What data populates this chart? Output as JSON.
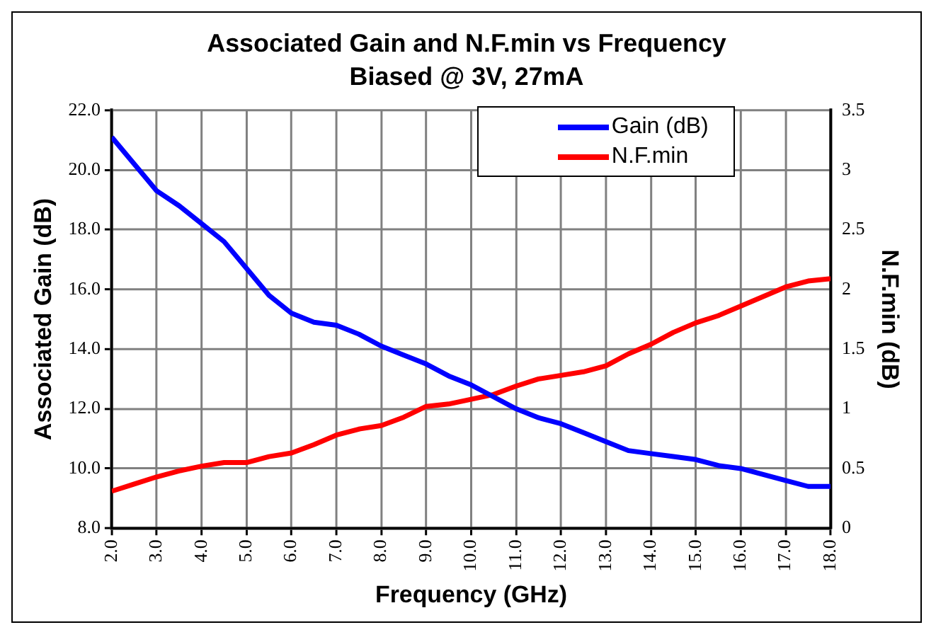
{
  "chart_data": {
    "type": "line",
    "title": "Associated Gain and N.F.min vs Frequency",
    "subtitle": "Biased @ 3V, 27mA",
    "xlabel": "Frequency (GHz)",
    "ylabel": "Associated Gain (dB)",
    "y2label": "N.F.min (dB)",
    "xlim": [
      2,
      18
    ],
    "xticks": [
      {
        "value": 2,
        "label": "2.0"
      },
      {
        "value": 3,
        "label": "3.0"
      },
      {
        "value": 4,
        "label": "4.0"
      },
      {
        "value": 5,
        "label": "5.0"
      },
      {
        "value": 6,
        "label": "6.0"
      },
      {
        "value": 7,
        "label": "7.0"
      },
      {
        "value": 8,
        "label": "8.0"
      },
      {
        "value": 9,
        "label": "9.0"
      },
      {
        "value": 10,
        "label": "10.0"
      },
      {
        "value": 11,
        "label": "11.0"
      },
      {
        "value": 12,
        "label": "12.0"
      },
      {
        "value": 13,
        "label": "13.0"
      },
      {
        "value": 14,
        "label": "14.0"
      },
      {
        "value": 15,
        "label": "15.0"
      },
      {
        "value": 16,
        "label": "16.0"
      },
      {
        "value": 17,
        "label": "17.0"
      },
      {
        "value": 18,
        "label": "18.0"
      }
    ],
    "ylim": [
      8,
      22
    ],
    "yticks": [
      {
        "value": 8,
        "label": "8.0"
      },
      {
        "value": 10,
        "label": "10.0"
      },
      {
        "value": 12,
        "label": "12.0"
      },
      {
        "value": 14,
        "label": "14.0"
      },
      {
        "value": 16,
        "label": "16.0"
      },
      {
        "value": 18,
        "label": "18.0"
      },
      {
        "value": 20,
        "label": "20.0"
      },
      {
        "value": 22,
        "label": "22.0"
      }
    ],
    "y2lim": [
      0,
      3.5
    ],
    "y2ticks": [
      0,
      0.5,
      1,
      1.5,
      2,
      2.5,
      3,
      3.5
    ],
    "x": [
      2,
      2.5,
      3,
      3.5,
      4,
      4.5,
      5,
      5.5,
      6,
      6.5,
      7,
      7.5,
      8,
      8.5,
      9,
      9.5,
      10,
      10.5,
      11,
      11.5,
      12,
      12.5,
      13,
      13.5,
      14,
      14.5,
      15,
      15.5,
      16,
      16.5,
      17,
      17.5,
      18
    ],
    "series": [
      {
        "name": "Gain (dB)",
        "color": "#0000ff",
        "values": [
          21.1,
          20.2,
          19.3,
          18.8,
          18.2,
          17.6,
          16.7,
          15.8,
          15.2,
          14.9,
          14.8,
          14.5,
          14.1,
          13.8,
          13.5,
          13.1,
          12.8,
          12.4,
          12.0,
          11.7,
          11.5,
          11.2,
          10.9,
          10.6,
          10.5,
          10.4,
          10.3,
          10.1,
          10.0,
          9.8,
          9.6,
          9.4,
          9.4
        ]
      },
      {
        "name": "N.F.min",
        "color": "#ff0000",
        "axis": "y2",
        "values": [
          0.31,
          0.37,
          0.43,
          0.48,
          0.52,
          0.55,
          0.55,
          0.6,
          0.63,
          0.7,
          0.78,
          0.83,
          0.86,
          0.93,
          1.02,
          1.04,
          1.08,
          1.12,
          1.19,
          1.25,
          1.28,
          1.31,
          1.36,
          1.46,
          1.54,
          1.64,
          1.72,
          1.78,
          1.86,
          1.94,
          2.02,
          2.07,
          2.09
        ]
      }
    ],
    "grid": true,
    "legend": "top right",
    "marker": "none",
    "line_style": "solid"
  }
}
